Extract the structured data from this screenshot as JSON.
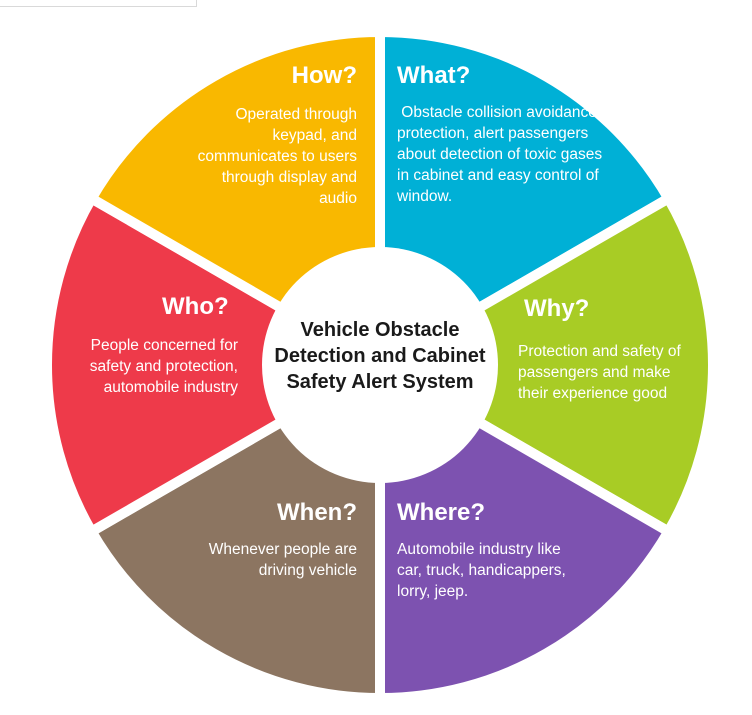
{
  "center": {
    "line1": "Vehicle Obstacle",
    "line2": "Detection and Cabinet",
    "line3": "Safety Alert System"
  },
  "segments": [
    {
      "id": "what",
      "title": "What?",
      "color": "#00b0d6",
      "lines": [
        " Obstacle collision avoidance,",
        "protection, alert passengers",
        "about detection of toxic gases",
        "in cabinet and easy control of",
        "window."
      ]
    },
    {
      "id": "why",
      "title": "Why?",
      "color": "#a8cc25",
      "lines": [
        "Protection and safety of",
        "passengers and make",
        "their experience good"
      ]
    },
    {
      "id": "where",
      "title": "Where?",
      "color": "#7d52b0",
      "lines": [
        "Automobile industry like",
        "car, truck, handicappers,",
        "lorry, jeep."
      ]
    },
    {
      "id": "when",
      "title": "When?",
      "color": "#8c7561",
      "lines": [
        "Whenever people are",
        "driving vehicle"
      ]
    },
    {
      "id": "who",
      "title": "Who?",
      "color": "#ee3a4a",
      "lines": [
        "People concerned for",
        "safety and protection,",
        "automobile industry"
      ]
    },
    {
      "id": "how",
      "title": "How?",
      "color": "#f9b800",
      "lines": [
        "Operated through",
        "keypad, and",
        "communicates to users",
        "through display and",
        "audio"
      ]
    }
  ]
}
